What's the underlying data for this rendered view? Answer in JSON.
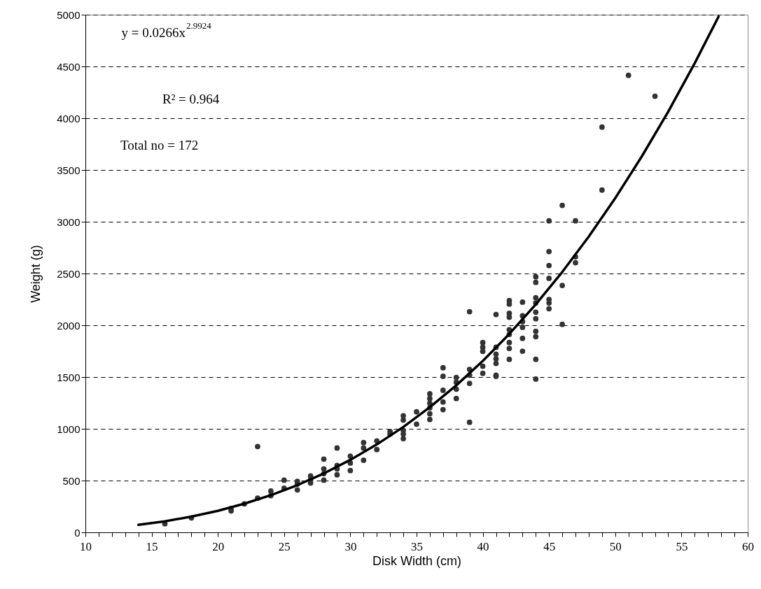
{
  "chart_data": {
    "type": "scatter",
    "xlabel": "Disk Width (cm)",
    "ylabel": "Weight (g)",
    "xlim": [
      10,
      60
    ],
    "ylim": [
      0,
      5000
    ],
    "xticks": [
      10,
      {
        "value": 11,
        "label": null
      },
      {
        "value": 12,
        "label": null
      },
      {
        "value": 13,
        "label": null
      },
      {
        "value": 14,
        "label": null
      },
      15,
      {
        "value": 16,
        "label": null
      },
      {
        "value": 17,
        "label": null
      },
      {
        "value": 18,
        "label": null
      },
      {
        "value": 19,
        "label": null
      },
      20,
      {
        "value": 21,
        "label": null
      },
      {
        "value": 22,
        "label": null
      },
      {
        "value": 23,
        "label": null
      },
      {
        "value": 24,
        "label": null
      },
      25,
      {
        "value": 26,
        "label": null
      },
      {
        "value": 27,
        "label": null
      },
      {
        "value": 28,
        "label": null
      },
      {
        "value": 29,
        "label": null
      },
      30,
      {
        "value": 31,
        "label": null
      },
      {
        "value": 32,
        "label": null
      },
      {
        "value": 33,
        "label": null
      },
      {
        "value": 34,
        "label": null
      },
      35,
      {
        "value": 36,
        "label": null
      },
      {
        "value": 37,
        "label": null
      },
      {
        "value": 38,
        "label": null
      },
      {
        "value": 39,
        "label": null
      },
      40,
      {
        "value": 41,
        "label": null
      },
      {
        "value": 42,
        "label": null
      },
      {
        "value": 43,
        "label": null
      },
      {
        "value": 44,
        "label": null
      },
      45,
      {
        "value": 46,
        "label": null
      },
      {
        "value": 47,
        "label": null
      },
      {
        "value": 48,
        "label": null
      },
      {
        "value": 49,
        "label": null
      },
      50,
      {
        "value": 51,
        "label": null
      },
      {
        "value": 52,
        "label": null
      },
      {
        "value": 53,
        "label": null
      },
      {
        "value": 54,
        "label": null
      },
      55,
      {
        "value": 56,
        "label": null
      },
      {
        "value": 57,
        "label": null
      },
      {
        "value": 58,
        "label": null
      },
      {
        "value": 59,
        "label": null
      },
      60
    ],
    "yticks": [
      0,
      500,
      1000,
      1500,
      2000,
      2500,
      3000,
      3500,
      4000,
      4500,
      5000
    ],
    "grid": "y",
    "annotations": [
      "y = 0.0266x$^{2.9924}$",
      "R² = 0.964",
      "Total no = 172"
    ],
    "series": [
      {
        "marker": "circle",
        "color": "#333333",
        "x": [
          16,
          18,
          21,
          21,
          22,
          23,
          23,
          24,
          24,
          25,
          25,
          26,
          26,
          26,
          27,
          27,
          27,
          28,
          28,
          28,
          28,
          29,
          29,
          29,
          29,
          30,
          30,
          30,
          31,
          31,
          31,
          32,
          32,
          33,
          33,
          34,
          34,
          34,
          34,
          34,
          35,
          35,
          36,
          36,
          36,
          36,
          36,
          36,
          37,
          37,
          37,
          37,
          37,
          38,
          38,
          38,
          38,
          39,
          39,
          39,
          39,
          39,
          40,
          40,
          40,
          40,
          40,
          41,
          41,
          41,
          41,
          41,
          41,
          41,
          42,
          42,
          42,
          42,
          42,
          42,
          42,
          42,
          42,
          43,
          43,
          43,
          43,
          43,
          43,
          44,
          44,
          44,
          44,
          44,
          44,
          44,
          44,
          44,
          44,
          45,
          45,
          45,
          45,
          45,
          45,
          45,
          46,
          46,
          46,
          47,
          47,
          47,
          49,
          49,
          51,
          53
        ],
        "values": [
          83,
          140,
          207,
          230,
          275,
          829,
          331,
          399,
          354,
          504,
          426,
          493,
          410,
          466,
          545,
          477,
          511,
          707,
          613,
          567,
          504,
          815,
          646,
          613,
          556,
          736,
          669,
          597,
          867,
          815,
          696,
          883,
          799,
          973,
          950,
          1126,
          1085,
          984,
          950,
          905,
          1164,
          1045,
          1338,
          1293,
          1248,
          1203,
          1146,
          1090,
          1590,
          1507,
          1372,
          1259,
          1185,
          1496,
          1450,
          1383,
          1293,
          2131,
          1574,
          1518,
          1439,
          1063,
          1833,
          1788,
          1748,
          1604,
          1536,
          2104,
          1788,
          1721,
          1676,
          1631,
          1518,
          1507,
          2239,
          2205,
          2115,
          2077,
          1957,
          1912,
          1833,
          1777,
          1671,
          2223,
          2092,
          2036,
          1980,
          1874,
          1750,
          2468,
          2414,
          2266,
          2216,
          2126,
          2063,
          1941,
          1890,
          1671,
          1480,
          3009,
          2712,
          2577,
          2453,
          2250,
          2216,
          2160,
          3158,
          2385,
          2009,
          3009,
          2662,
          2604,
          3914,
          3306,
          4414,
          4212
        ]
      },
      {
        "type": "line",
        "color": "#000000",
        "x": [
          14,
          16,
          18,
          20,
          22,
          24,
          26,
          28,
          30,
          32,
          34,
          36,
          38,
          40,
          42,
          44,
          46,
          48,
          50,
          52,
          54,
          56,
          57.8
        ],
        "values": [
          72,
          107,
          152,
          208,
          277,
          359,
          456,
          569,
          700,
          849,
          1018,
          1208,
          1420,
          1655,
          1916,
          2202,
          2515,
          2856,
          3228,
          3630,
          4063,
          4531,
          4981
        ]
      }
    ]
  }
}
